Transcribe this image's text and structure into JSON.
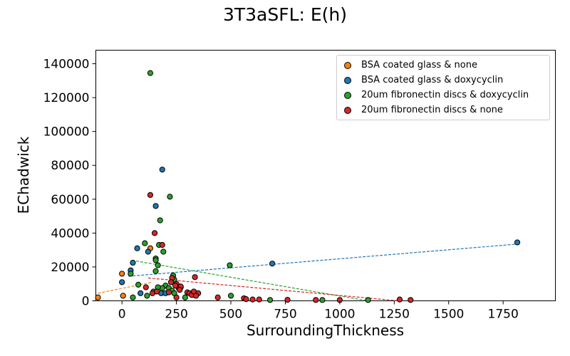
{
  "chart_data": {
    "type": "scatter",
    "title": "3T3aSFL: E(h)",
    "xlabel": "SurroundingThickness",
    "ylabel": "EChadwick",
    "xlim": [
      -120,
      1990
    ],
    "ylim": [
      0,
      148000
    ],
    "xticks": [
      0,
      250,
      500,
      750,
      1000,
      1250,
      1500,
      1750
    ],
    "yticks": [
      0,
      20000,
      40000,
      60000,
      80000,
      100000,
      120000,
      140000
    ],
    "grid": false,
    "legend_position": "top-right",
    "series": [
      {
        "name": "BSA coated glass & none",
        "color": "#ff7f0e",
        "points": [
          [
            -110,
            2000
          ],
          [
            0,
            16000
          ],
          [
            5,
            3000
          ],
          [
            130,
            31000
          ]
        ],
        "fit": [
          [
            -110,
            4500
          ],
          [
            140,
            11000
          ]
        ]
      },
      {
        "name": "BSA coated glass & doxycyclin",
        "color": "#1f77b4",
        "points": [
          [
            0,
            11000
          ],
          [
            40,
            18000
          ],
          [
            50,
            22500
          ],
          [
            70,
            31000
          ],
          [
            120,
            29000
          ],
          [
            155,
            56000
          ],
          [
            185,
            77500
          ],
          [
            180,
            4500
          ],
          [
            200,
            4500
          ],
          [
            85,
            4500
          ],
          [
            690,
            22000
          ],
          [
            1815,
            34500
          ]
        ],
        "fit": [
          [
            30,
            14500
          ],
          [
            1815,
            33500
          ]
        ]
      },
      {
        "name": "20um fibronectin discs & doxycyclin",
        "color": "#2ca02c",
        "points": [
          [
            130,
            134500
          ],
          [
            220,
            61500
          ],
          [
            175,
            47500
          ],
          [
            190,
            29000
          ],
          [
            170,
            33000
          ],
          [
            155,
            25000
          ],
          [
            155,
            24000
          ],
          [
            165,
            21000
          ],
          [
            105,
            34000
          ],
          [
            155,
            17500
          ],
          [
            235,
            15000
          ],
          [
            240,
            12500
          ],
          [
            200,
            9000
          ],
          [
            185,
            7500
          ],
          [
            165,
            8000
          ],
          [
            145,
            5500
          ],
          [
            75,
            9500
          ],
          [
            40,
            16000
          ],
          [
            50,
            2000
          ],
          [
            115,
            3000
          ],
          [
            215,
            7500
          ],
          [
            230,
            6000
          ],
          [
            240,
            4500
          ],
          [
            270,
            8000
          ],
          [
            290,
            2000
          ],
          [
            330,
            3500
          ],
          [
            495,
            21000
          ],
          [
            500,
            3000
          ],
          [
            680,
            500
          ],
          [
            920,
            500
          ],
          [
            1130,
            500
          ]
        ],
        "fit": [
          [
            65,
            23500
          ],
          [
            1130,
            0
          ]
        ]
      },
      {
        "name": "20um fibronectin discs & none",
        "color": "#d62728",
        "points": [
          [
            130,
            62500
          ],
          [
            150,
            40000
          ],
          [
            185,
            33000
          ],
          [
            230,
            13500
          ],
          [
            110,
            8000
          ],
          [
            250,
            10000
          ],
          [
            260,
            7500
          ],
          [
            270,
            8500
          ],
          [
            245,
            9000
          ],
          [
            225,
            11000
          ],
          [
            265,
            6500
          ],
          [
            300,
            5000
          ],
          [
            310,
            4500
          ],
          [
            320,
            3500
          ],
          [
            330,
            5500
          ],
          [
            350,
            4500
          ],
          [
            340,
            3000
          ],
          [
            335,
            14000
          ],
          [
            250,
            2000
          ],
          [
            140,
            4500
          ],
          [
            160,
            5500
          ],
          [
            215,
            5000
          ],
          [
            440,
            2000
          ],
          [
            560,
            1500
          ],
          [
            570,
            1000
          ],
          [
            600,
            800
          ],
          [
            630,
            800
          ],
          [
            760,
            600
          ],
          [
            890,
            500
          ],
          [
            1000,
            500
          ],
          [
            1275,
            800
          ],
          [
            1325,
            500
          ]
        ],
        "fit": [
          [
            120,
            13500
          ],
          [
            1270,
            0
          ]
        ]
      }
    ]
  }
}
